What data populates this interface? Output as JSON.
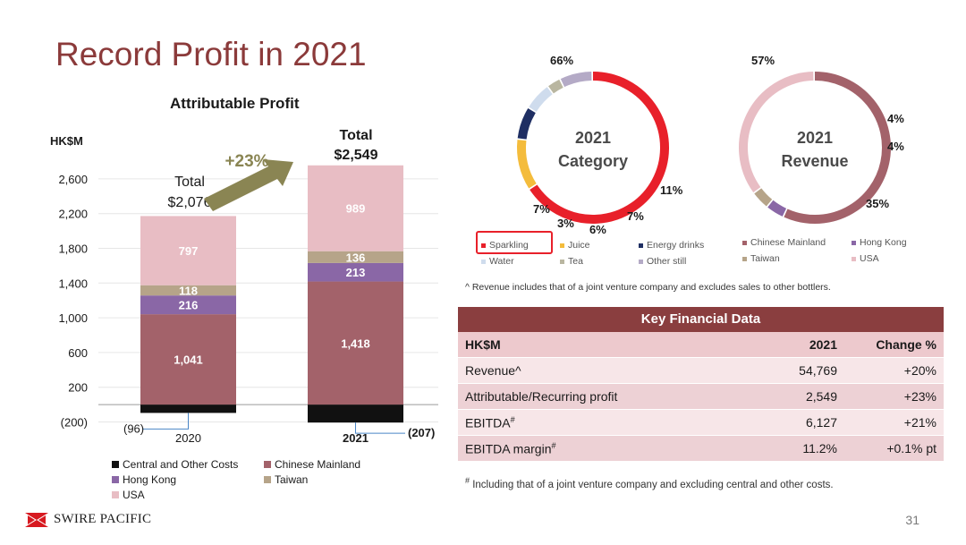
{
  "slide": {
    "title": "Record Profit in 2021",
    "page_number": "31",
    "logo_text": "SWIRE PACIFIC",
    "colors": {
      "title": "#8b3a3a",
      "table_header": "#8a3e3f",
      "arrow": "#8a8553"
    }
  },
  "chart_data": [
    {
      "type": "bar",
      "stacked": true,
      "title": "Attributable Profit",
      "ylabel": "HK$M",
      "categories": [
        "2020",
        "2021"
      ],
      "ylim": [
        -200,
        2800
      ],
      "yticks": [
        -200,
        200,
        600,
        1000,
        1400,
        1800,
        2200,
        2600
      ],
      "ytick_labels": [
        "(200)",
        "200",
        "600",
        "1,000",
        "1,400",
        "1,800",
        "2,200",
        "2,600"
      ],
      "series": [
        {
          "name": "Central and Other Costs",
          "color": "#111111",
          "values": [
            -96,
            -207
          ],
          "labels": [
            "(96)",
            "(207)"
          ]
        },
        {
          "name": "Chinese Mainland",
          "color": "#a3626a",
          "values": [
            1041,
            1418
          ],
          "labels": [
            "1,041",
            "1,418"
          ]
        },
        {
          "name": "Hong Kong",
          "color": "#8a67a6",
          "values": [
            216,
            213
          ],
          "labels": [
            "216",
            "213"
          ]
        },
        {
          "name": "Taiwan",
          "color": "#b6a489",
          "values": [
            118,
            136
          ],
          "labels": [
            "118",
            "136"
          ]
        },
        {
          "name": "USA",
          "color": "#e8bdc4",
          "values": [
            797,
            989
          ],
          "labels": [
            "797",
            "989"
          ]
        }
      ],
      "totals": [
        {
          "label": "Total",
          "value": "$2,076"
        },
        {
          "label": "Total",
          "value": "$2,549"
        }
      ],
      "growth_label": "+23%"
    },
    {
      "type": "pie",
      "donut": true,
      "center_label": [
        "2021",
        "Category"
      ],
      "slices": [
        {
          "name": "Sparkling",
          "value": 66,
          "label": "66%",
          "color": "#e8202a"
        },
        {
          "name": "Juice",
          "value": 11,
          "label": "11%",
          "color": "#f4bc3c"
        },
        {
          "name": "Energy drinks",
          "value": 7,
          "label": "7%",
          "color": "#1f2f63"
        },
        {
          "name": "Water",
          "value": 6,
          "label": "6%",
          "color": "#cfdced"
        },
        {
          "name": "Tea",
          "value": 3,
          "label": "3%",
          "color": "#b9b6a0"
        },
        {
          "name": "Other still",
          "value": 7,
          "label": "7%",
          "color": "#b4aac6"
        }
      ]
    },
    {
      "type": "pie",
      "donut": true,
      "center_label": [
        "2021",
        "Revenue"
      ],
      "slices": [
        {
          "name": "Chinese Mainland",
          "value": 57,
          "label": "57%",
          "color": "#a3626a"
        },
        {
          "name": "Hong Kong",
          "value": 4,
          "label": "4%",
          "color": "#8a67a6"
        },
        {
          "name": "Taiwan",
          "value": 4,
          "label": "4%",
          "color": "#b6a489"
        },
        {
          "name": "USA",
          "value": 35,
          "label": "35%",
          "color": "#e8bdc4"
        }
      ]
    }
  ],
  "notes": {
    "revenue_note": "^ Revenue includes that of a joint venture company and excludes sales to other bottlers.",
    "footnote_mark": "#",
    "footnote_text": " Including that of a joint venture company and excluding central and other costs."
  },
  "key_financial_data": {
    "title": "Key Financial Data",
    "headers": [
      "HK$M",
      "2021",
      "Change %"
    ],
    "rows": [
      {
        "label": "Revenue^",
        "sup": "",
        "value": "54,769",
        "change": "+20%"
      },
      {
        "label": "Attributable/Recurring profit",
        "sup": "",
        "value": "2,549",
        "change": "+23%"
      },
      {
        "label": "EBITDA",
        "sup": "#",
        "value": "6,127",
        "change": "+21%"
      },
      {
        "label": "EBITDA margin",
        "sup": "#",
        "value": "11.2%",
        "change": "+0.1% pt"
      }
    ]
  }
}
